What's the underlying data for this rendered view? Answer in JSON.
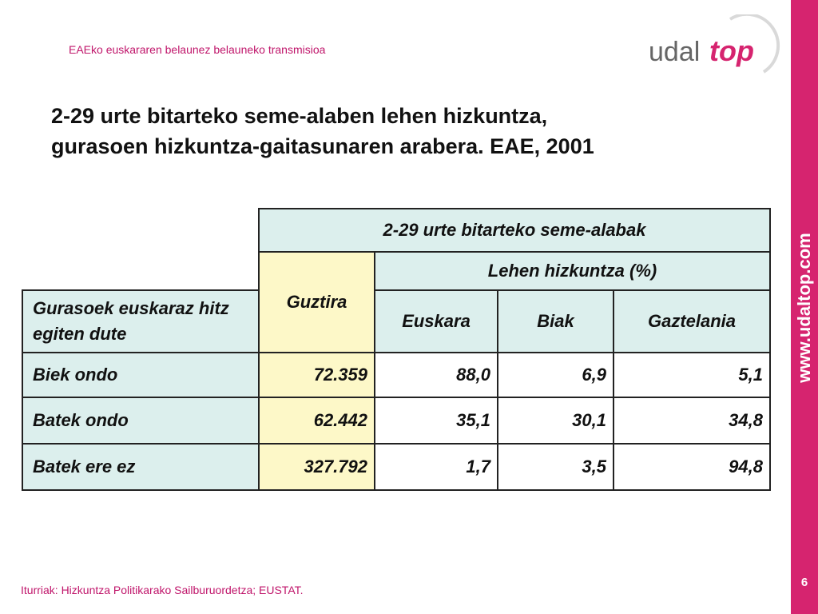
{
  "header": {
    "subtitle": "EAEko euskararen belaunez belauneko transmisioa"
  },
  "logo": {
    "text_part1": "udal",
    "text_part2": "top",
    "brand_color": "#d6246f"
  },
  "title": {
    "line1": "2-29 urte bitarteko seme-alaben lehen hizkuntza,",
    "line2": "gurasoen hizkuntza-gaitasunaren arabera. EAE, 2001"
  },
  "table": {
    "group_header": "2-29 urte bitarteko seme-alabak",
    "total_header": "Guztira",
    "lang_header": "Lehen hizkuntza (%)",
    "row_header": "Gurasoek euskaraz hitz egiten dute",
    "columns": [
      "Euskara",
      "Biak",
      "Gaztelania"
    ],
    "rows": [
      {
        "label": "Biek ondo",
        "total": "72.359",
        "values": [
          "88,0",
          "6,9",
          "5,1"
        ]
      },
      {
        "label": "Batek ondo",
        "total": "62.442",
        "values": [
          "35,1",
          "30,1",
          "34,8"
        ]
      },
      {
        "label": "Batek ere ez",
        "total": "327.792",
        "values": [
          "1,7",
          "3,5",
          "94,8"
        ]
      }
    ]
  },
  "source": "Iturriak: Hizkuntza Politikarako Sailburuordetza; EUSTAT.",
  "sidebar": {
    "url": "www.udaltop.com",
    "page_number": "6"
  },
  "colors": {
    "accent": "#c0166b",
    "sidebar": "#d6246f",
    "table_bg": "#dcefed",
    "total_bg": "#fdf8c8"
  }
}
